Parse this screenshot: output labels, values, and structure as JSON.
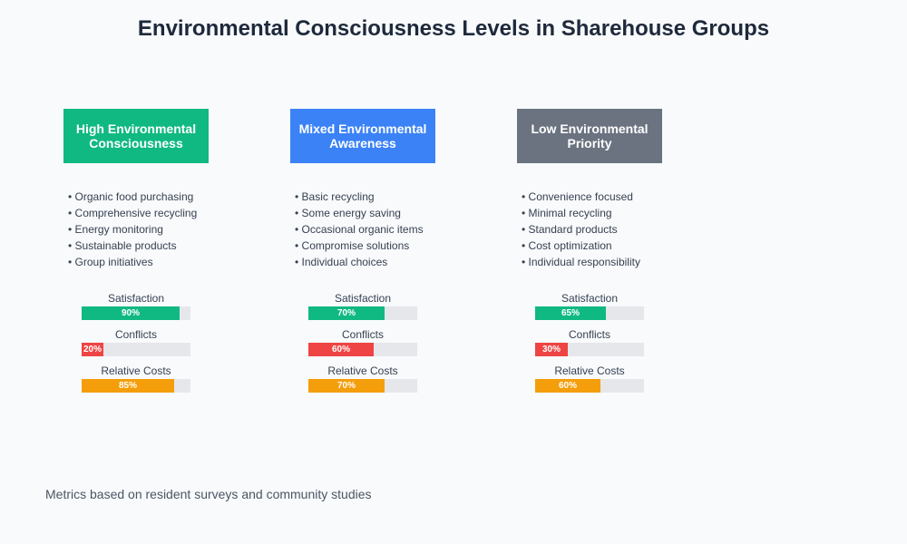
{
  "title": "Environmental Consciousness Levels in Sharehouse Groups",
  "groups": [
    {
      "name": "High Environmental Consciousness",
      "color": "#10b981",
      "items": [
        "Organic food purchasing",
        "Comprehensive recycling",
        "Energy monitoring",
        "Sustainable products",
        "Group initiatives"
      ],
      "metrics": [
        {
          "label": "Satisfaction",
          "value": 90,
          "value_label": "90%",
          "color": "#10b981"
        },
        {
          "label": "Conflicts",
          "value": 20,
          "value_label": "20%",
          "color": "#ef4444"
        },
        {
          "label": "Relative Costs",
          "value": 85,
          "value_label": "85%",
          "color": "#f59e0b"
        }
      ]
    },
    {
      "name": "Mixed Environmental Awareness",
      "color": "#3b82f6",
      "items": [
        "Basic recycling",
        "Some energy saving",
        "Occasional organic items",
        "Compromise solutions",
        "Individual choices"
      ],
      "metrics": [
        {
          "label": "Satisfaction",
          "value": 70,
          "value_label": "70%",
          "color": "#10b981"
        },
        {
          "label": "Conflicts",
          "value": 60,
          "value_label": "60%",
          "color": "#ef4444"
        },
        {
          "label": "Relative Costs",
          "value": 70,
          "value_label": "70%",
          "color": "#f59e0b"
        }
      ]
    },
    {
      "name": "Low Environmental Priority",
      "color": "#6b7280",
      "items": [
        "Convenience focused",
        "Minimal recycling",
        "Standard products",
        "Cost optimization",
        "Individual responsibility"
      ],
      "metrics": [
        {
          "label": "Satisfaction",
          "value": 65,
          "value_label": "65%",
          "color": "#10b981"
        },
        {
          "label": "Conflicts",
          "value": 30,
          "value_label": "30%",
          "color": "#ef4444"
        },
        {
          "label": "Relative Costs",
          "value": 60,
          "value_label": "60%",
          "color": "#f59e0b"
        }
      ]
    }
  ],
  "footnote": "Metrics based on resident surveys and community studies"
}
